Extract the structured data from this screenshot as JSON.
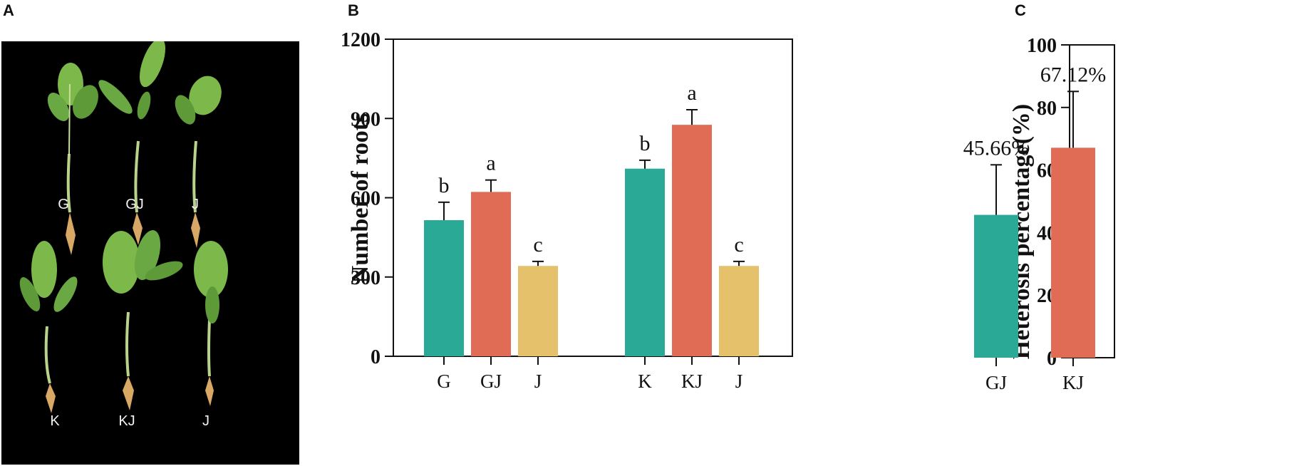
{
  "panels": {
    "a_letter": "A",
    "b_letter": "B",
    "c_letter": "C"
  },
  "photo": {
    "labels_top": [
      "G",
      "GJ",
      "J"
    ],
    "labels_bottom": [
      "K",
      "KJ",
      "J"
    ],
    "colors": {
      "background": "#000000",
      "leaf": "#7db84a",
      "leaf_dark": "#4f8a2c",
      "stem": "#b9d48a",
      "root": "#d9a865"
    }
  },
  "chart_data": [
    {
      "type": "bar",
      "panel": "B",
      "title": "",
      "xlabel": "",
      "ylabel": "Number of roots",
      "ylim": [
        0,
        1200
      ],
      "yticks": [
        "0",
        "300",
        "600",
        "900",
        "1200"
      ],
      "categories": [
        "G",
        "GJ",
        "J",
        "K",
        "KJ",
        "J"
      ],
      "values": [
        515,
        622,
        342,
        710,
        876,
        342
      ],
      "errors": [
        68,
        45,
        17,
        32,
        57,
        17
      ],
      "significance": [
        "b",
        "a",
        "c",
        "b",
        "a",
        "c"
      ],
      "colors": [
        "#2aa996",
        "#e06c55",
        "#e5c16b",
        "#2aa996",
        "#e06c55",
        "#e5c16b"
      ],
      "grid": false,
      "frame": "box"
    },
    {
      "type": "bar",
      "panel": "C",
      "title": "",
      "xlabel": "",
      "ylabel": "Heterosis percentage(%)",
      "ylim": [
        0,
        100
      ],
      "yticks": [
        "0",
        "20",
        "40",
        "60",
        "80",
        "100"
      ],
      "categories": [
        "GJ",
        "KJ"
      ],
      "values": [
        45.66,
        67.12
      ],
      "errors": [
        16,
        18
      ],
      "value_labels": [
        "45.66%",
        "67.12%"
      ],
      "colors": [
        "#2aa996",
        "#e06c55"
      ],
      "grid": false,
      "frame": "box"
    }
  ]
}
